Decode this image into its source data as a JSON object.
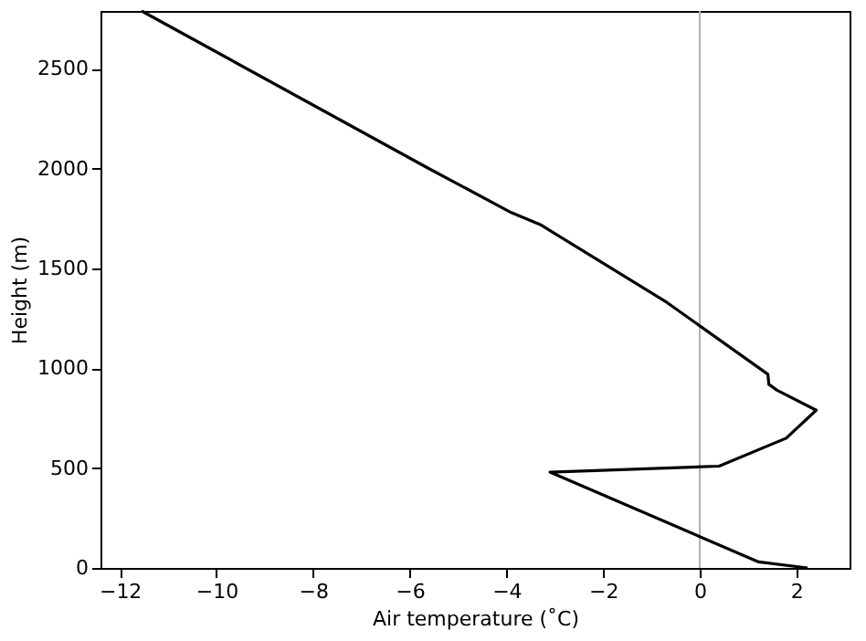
{
  "chart_data": {
    "type": "line",
    "xlabel": "Air temperature (˚C)",
    "ylabel": "Height (m)",
    "x": [
      -11.55,
      -5.6,
      -3.9,
      -3.3,
      -0.68,
      1.41,
      1.43,
      1.6,
      2.41,
      1.79,
      0.4,
      -3.1,
      1.22,
      2.23
    ],
    "series": [
      {
        "color": "#000000",
        "values": [
          2790,
          2000,
          1780,
          1720,
          1330,
          970,
          920,
          890,
          790,
          650,
          510,
          480,
          30,
          0
        ]
      }
    ],
    "xlim": [
      -12.4,
      3.1
    ],
    "xticks": [
      -12,
      -10,
      -8,
      -6,
      -4,
      -2,
      0,
      2
    ],
    "ylim": [
      0,
      2790
    ],
    "yticks": [
      0,
      500,
      1000,
      1500,
      2000,
      2500
    ],
    "ref_lines": [
      {
        "axis": "x",
        "value": 0,
        "color": "#b0b0b0"
      }
    ],
    "grid": false,
    "marker": "none",
    "line_style": "solid"
  }
}
